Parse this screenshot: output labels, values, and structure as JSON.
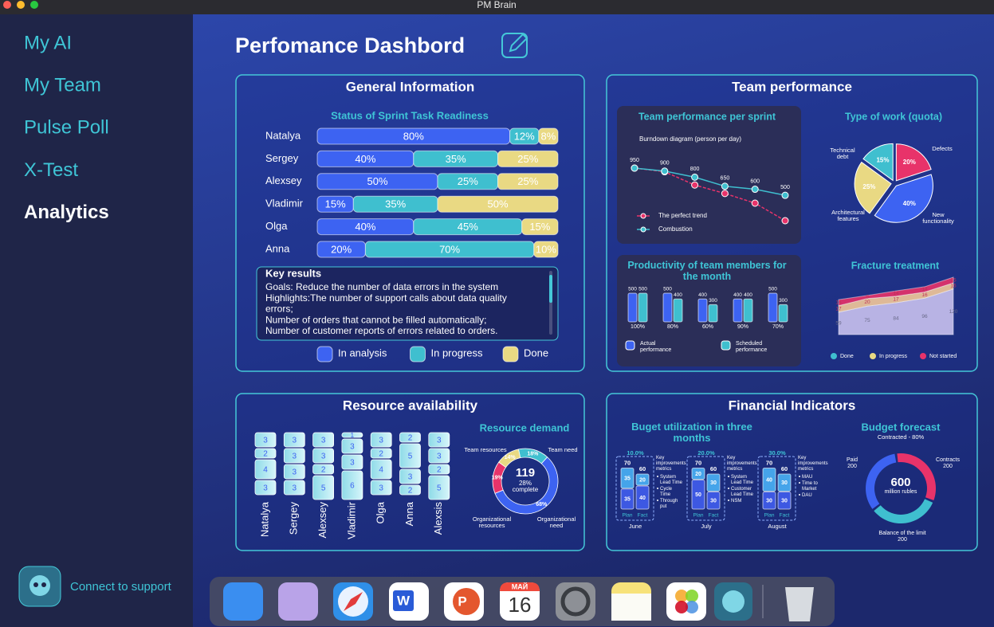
{
  "window": {
    "title": "PM Brain"
  },
  "sidebar": {
    "nav": [
      "My AI",
      "My Team",
      "Pulse Poll",
      "X-Test",
      "Analytics"
    ],
    "active": 4,
    "support": "Connect to support"
  },
  "header": {
    "title": "Perfomance Dashbord"
  },
  "general": {
    "title": "General Information",
    "subtitle": "Status of Sprint Task Readiness",
    "series": [
      {
        "name": "In analysis",
        "color": "#3d63f2"
      },
      {
        "name": "In progress",
        "color": "#3fbfcf"
      },
      {
        "name": "Done",
        "color": "#e9d983"
      }
    ],
    "rows": [
      {
        "name": "Natalya",
        "values": [
          80,
          12,
          8
        ],
        "value_labels": [
          "80%",
          "12%",
          "8%"
        ]
      },
      {
        "name": "Sergey",
        "values": [
          40,
          35,
          25
        ],
        "value_labels": [
          "40%",
          "35%",
          "25%"
        ]
      },
      {
        "name": "Alexsey",
        "values": [
          50,
          25,
          25
        ],
        "value_labels": [
          "50%",
          "25%",
          "25%"
        ]
      },
      {
        "name": "Vladimir",
        "values": [
          15,
          35,
          50
        ],
        "value_labels": [
          "15%",
          "35%",
          "50%"
        ]
      },
      {
        "name": "Olga",
        "values": [
          40,
          45,
          15
        ],
        "value_labels": [
          "40%",
          "45%",
          "15%"
        ]
      },
      {
        "name": "Anna",
        "values": [
          20,
          70,
          10
        ],
        "value_labels": [
          "20%",
          "70%",
          "10%"
        ]
      }
    ],
    "key_results": {
      "title": "Key results",
      "lines": [
        "Goals: Reduce the number of data errors in the system",
        "Highlights:The number of support calls about data quality",
        "errors;",
        "Number of orders that cannot be filled automatically;",
        "Number of customer reports of errors related to orders."
      ]
    }
  },
  "team": {
    "title": "Team performance",
    "burndown": {
      "title": "Team performance per sprint",
      "subtitle": "Burndown diagram (person per day)",
      "series": [
        {
          "name": "The perfect trend",
          "color": "#e8336a",
          "values": [
            950,
            890,
            670,
            530,
            370,
            80
          ]
        },
        {
          "name": "Combustion",
          "color": "#3fbfcf",
          "values": [
            950,
            900,
            800,
            650,
            600,
            500
          ]
        }
      ]
    },
    "quota": {
      "title": "Type of work (quota)",
      "slices": [
        {
          "name": "Technical debt",
          "value": 15,
          "label": "15%",
          "color": "#3fbfcf"
        },
        {
          "name": "Defects",
          "value": 20,
          "label": "20%",
          "color": "#e8336a"
        },
        {
          "name": "New functionality",
          "value": 40,
          "label": "40%",
          "color": "#3d63f2"
        },
        {
          "name": "Architectural features",
          "value": 25,
          "label": "25%",
          "color": "#e9d983"
        }
      ]
    },
    "productivity": {
      "title": "Productivity of team members for the month",
      "series": [
        {
          "name": "Actual performance",
          "color": "#3d63f2",
          "values": [
            500,
            500,
            400,
            400,
            500
          ]
        },
        {
          "name": "Scheduled performance",
          "color": "#3fbfcf",
          "values": [
            500,
            400,
            300,
            400,
            300
          ]
        }
      ],
      "completion": [
        "100%",
        "80%",
        "60%",
        "90%",
        "70%"
      ]
    },
    "fracture": {
      "title": "Fracture treatment",
      "series": [
        {
          "name": "Done",
          "color": "#3fbfcf",
          "fill": "#c9c2ef",
          "values": [
            59,
            75,
            84,
            96,
            120
          ]
        },
        {
          "name": "In progress",
          "color": "#e9d983",
          "fill": "#f3c89a",
          "values": [
            17,
            20,
            17,
            16,
            16
          ]
        },
        {
          "name": "Not started",
          "color": "#e8336a",
          "fill": "#e8336a",
          "values": [
            16,
            8,
            14,
            14,
            15
          ]
        }
      ]
    }
  },
  "resources": {
    "title": "Resource availability",
    "people": [
      {
        "name": "Natalya",
        "blocks": [
          3,
          2,
          4,
          3
        ]
      },
      {
        "name": "Sergey",
        "blocks": [
          3,
          3,
          3,
          3
        ]
      },
      {
        "name": "Alexsey",
        "blocks": [
          3,
          3,
          2,
          5
        ]
      },
      {
        "name": "Vladimir",
        "blocks": [
          1,
          3,
          3,
          6
        ]
      },
      {
        "name": "Olga",
        "blocks": [
          3,
          2,
          4,
          3
        ]
      },
      {
        "name": "Anna",
        "blocks": [
          2,
          5,
          3,
          2
        ]
      },
      {
        "name": "Alexsis",
        "blocks": [
          3,
          3,
          2,
          5
        ]
      }
    ],
    "demand": {
      "title": "Resource demand",
      "total": 119,
      "complete": "28%",
      "complete_text": "complete",
      "segments": [
        {
          "name": "Team need",
          "value": 18,
          "label": "18%",
          "color": "#3fbfcf"
        },
        {
          "name": "Organizational need",
          "value": 68,
          "label": "68%",
          "color": "#3d63f2"
        },
        {
          "name": "Organizational resources",
          "value": 19,
          "label": "19%",
          "color": "#e8336a"
        },
        {
          "name": "Team resources",
          "value": 14,
          "label": "14%",
          "color": "#e9d983"
        }
      ]
    }
  },
  "finance": {
    "title": "Financial Indicators",
    "utilization": {
      "title": "Buget utilization in three months",
      "metrics_title": "Key improvements metrics",
      "plan": "Plan",
      "fact": "Fact",
      "months": [
        {
          "name": "June",
          "share": "10.0%",
          "plan_total": 70,
          "fact_total": 60,
          "plan": [
            35,
            35
          ],
          "fact": [
            20,
            40
          ],
          "metrics": [
            "System Lead Time",
            "Cycle Time",
            "Through put"
          ]
        },
        {
          "name": "July",
          "share": "20.0%",
          "plan_total": 70,
          "fact_total": 60,
          "plan": [
            20,
            50
          ],
          "fact": [
            30,
            30
          ],
          "metrics": [
            "System Lead Time",
            "Customer Lead Time",
            "NSM"
          ]
        },
        {
          "name": "August",
          "share": "30.0%",
          "plan_total": 70,
          "fact_total": 60,
          "plan": [
            40,
            30
          ],
          "fact": [
            30,
            30
          ],
          "metrics": [
            "MAU",
            "Time to Market",
            "DAU"
          ]
        }
      ]
    },
    "forecast": {
      "title": "Budget forecast",
      "subtitle": "Contracted - 80%",
      "total": 600,
      "unit": "million rubles",
      "segments": [
        {
          "name": "Contracts",
          "value": 200,
          "color": "#e8336a"
        },
        {
          "name": "Balance of the limit",
          "value": 200,
          "color": "#3fbfcf"
        },
        {
          "name": "Paid",
          "value": 200,
          "color": "#3d63f2"
        }
      ]
    }
  },
  "dock": {
    "calendar_month": "МАЙ",
    "calendar_day": "16",
    "word": "W",
    "powerpoint": "P"
  }
}
